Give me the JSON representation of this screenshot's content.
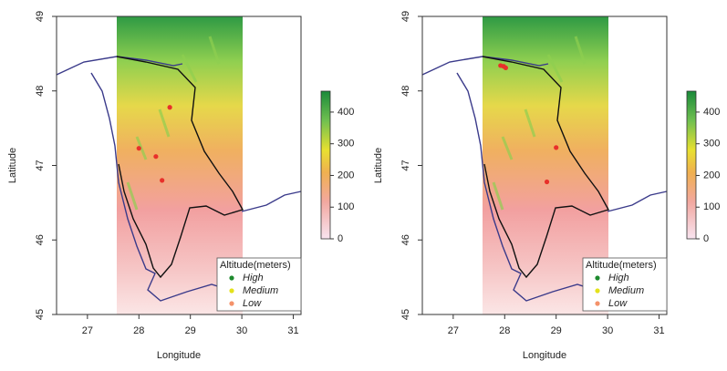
{
  "chart_data": [
    {
      "type": "map",
      "xlabel": "Longitude",
      "ylabel": "Latitude",
      "xlim": [
        26.4,
        31.15
      ],
      "ylim": [
        45,
        49
      ],
      "xticks": [
        27,
        28,
        29,
        30,
        31
      ],
      "yticks": [
        45,
        46,
        47,
        48,
        49
      ],
      "series": [
        {
          "color": "#e8302a",
          "x": [
            28.6,
            28.0,
            28.33,
            28.45
          ],
          "y": [
            47.78,
            47.23,
            47.12,
            46.8
          ]
        }
      ],
      "colorbar": {
        "lim": [
          0,
          466
        ],
        "ticks": [
          0,
          100,
          200,
          300,
          400
        ]
      },
      "legend": {
        "title": "Altitude(meters)",
        "position": "bottomright",
        "items": [
          {
            "label": "High",
            "color": "#1e8a2e"
          },
          {
            "label": "Medium",
            "color": "#e4e21c"
          },
          {
            "label": "Low",
            "color": "#f4926a"
          }
        ]
      }
    },
    {
      "type": "map",
      "xlabel": "Longitude",
      "ylabel": "Latitude",
      "xlim": [
        26.4,
        31.15
      ],
      "ylim": [
        45,
        49
      ],
      "xticks": [
        27,
        28,
        29,
        30,
        31
      ],
      "yticks": [
        45,
        46,
        47,
        48,
        49
      ],
      "series": [
        {
          "color": "#e8302a",
          "x": [
            27.92,
            27.98,
            28.02,
            29.0,
            28.82
          ],
          "y": [
            48.34,
            48.33,
            48.31,
            47.24,
            46.78
          ]
        }
      ],
      "colorbar": {
        "lim": [
          0,
          466
        ],
        "ticks": [
          0,
          100,
          200,
          300,
          400
        ]
      },
      "legend": {
        "title": "Altitude(meters)",
        "position": "bottomright",
        "items": [
          {
            "label": "High",
            "color": "#1e8a2e"
          },
          {
            "label": "Medium",
            "color": "#e4e21c"
          },
          {
            "label": "Low",
            "color": "#f4926a"
          }
        ]
      }
    }
  ]
}
